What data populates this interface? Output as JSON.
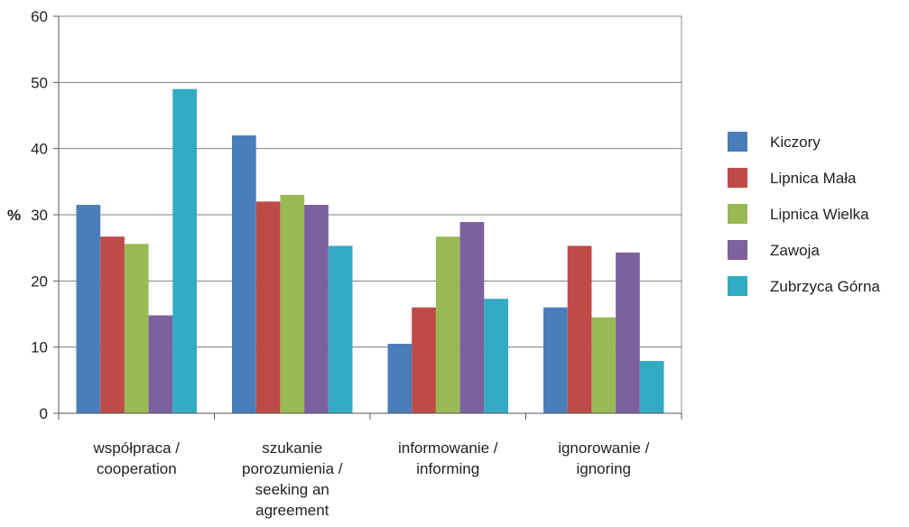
{
  "chart_data": {
    "type": "bar",
    "ylabel": "%",
    "xlabel": "",
    "title": "",
    "ylim": [
      0,
      60
    ],
    "yticks": [
      0,
      10,
      20,
      30,
      40,
      50,
      60
    ],
    "grid": true,
    "legend_position": "right",
    "categories": [
      [
        "współpraca /",
        "cooperation"
      ],
      [
        "szukanie",
        "porozumienia /",
        "seeking an",
        "agreement"
      ],
      [
        "informowanie /",
        "informing"
      ],
      [
        "ignorowanie /",
        "ignoring"
      ]
    ],
    "series": [
      {
        "name": "Kiczory",
        "color": "#4a7ebb",
        "values": [
          31.5,
          42,
          10.5,
          16
        ]
      },
      {
        "name": "Lipnica Mała",
        "color": "#be4b48",
        "values": [
          26.7,
          32,
          16,
          25.3
        ]
      },
      {
        "name": "Lipnica Wielka",
        "color": "#98b954",
        "values": [
          25.6,
          33,
          26.7,
          14.5
        ]
      },
      {
        "name": "Zawoja",
        "color": "#7d60a0",
        "values": [
          14.8,
          31.5,
          28.9,
          24.3
        ]
      },
      {
        "name": "Zubrzyca Górna",
        "color": "#33abc4",
        "values": [
          49,
          25.3,
          17.3,
          7.9
        ]
      }
    ]
  }
}
